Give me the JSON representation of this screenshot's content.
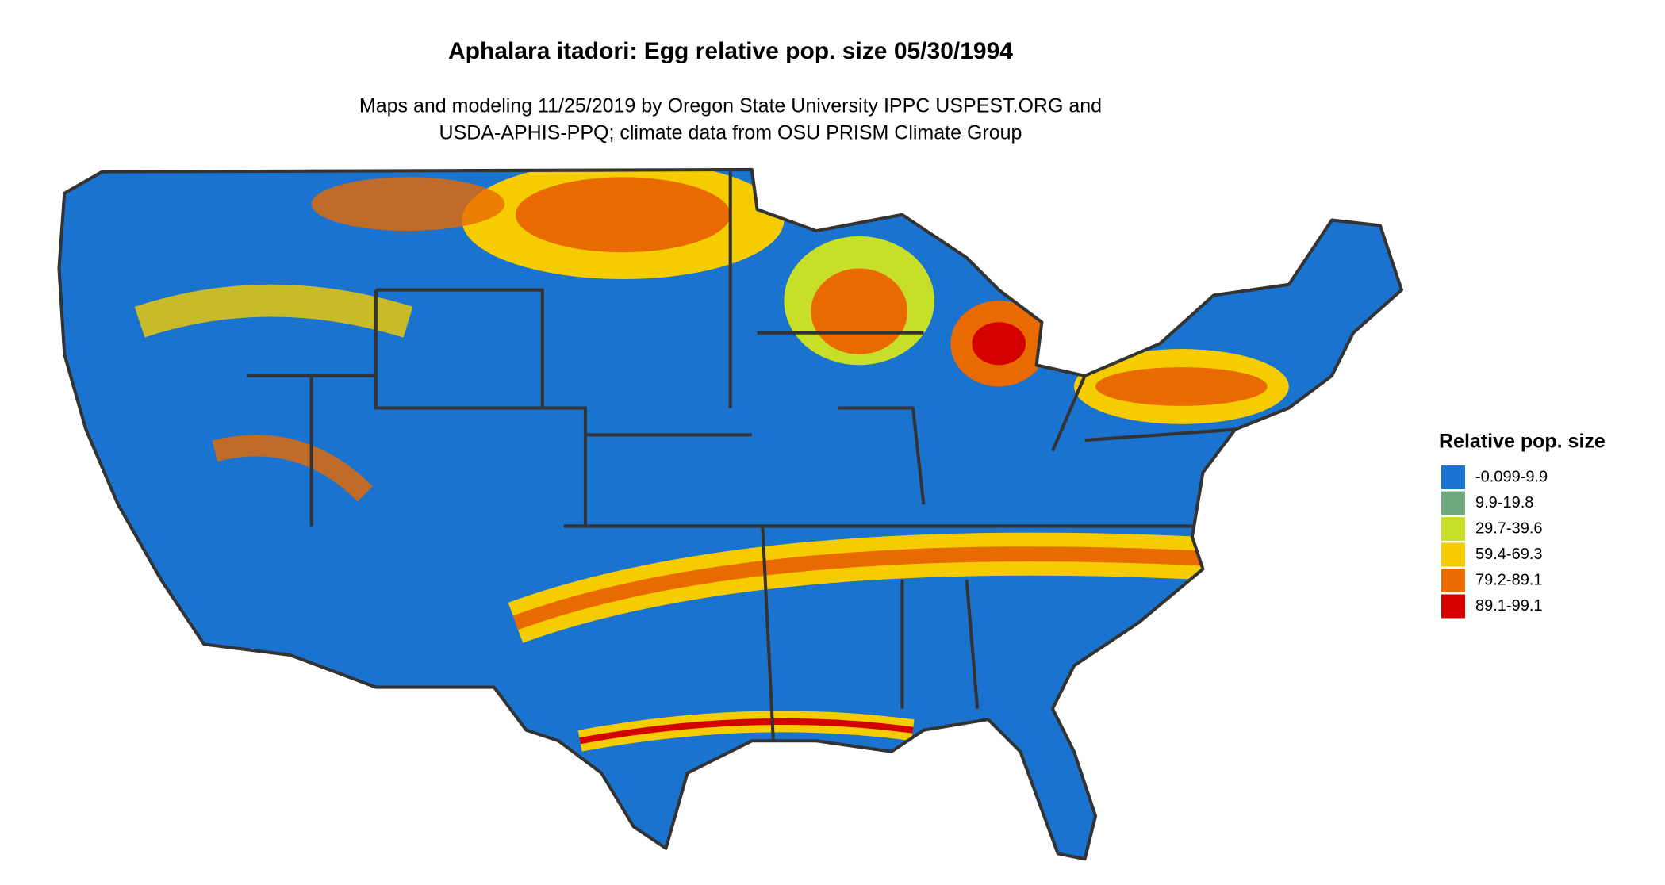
{
  "title": "Aphalara itadori: Egg relative pop. size 05/30/1994",
  "subtitle": [
    "Maps and modeling 11/25/2019 by Oregon State University IPPC USPEST.ORG and",
    "USDA-APHIS-PPQ; climate data from OSU PRISM Climate Group"
  ],
  "legend": {
    "title": "Relative pop. size",
    "items": [
      {
        "label": "-0.099-9.9",
        "color": "#1a73cf"
      },
      {
        "label": "9.9-19.8",
        "color": "#6ea77a"
      },
      {
        "label": "29.7-39.6",
        "color": "#c8df2a"
      },
      {
        "label": "59.4-69.3",
        "color": "#f5cc00"
      },
      {
        "label": "79.2-89.1",
        "color": "#e86a00"
      },
      {
        "label": "89.1-99.1",
        "color": "#d40000"
      }
    ]
  }
}
